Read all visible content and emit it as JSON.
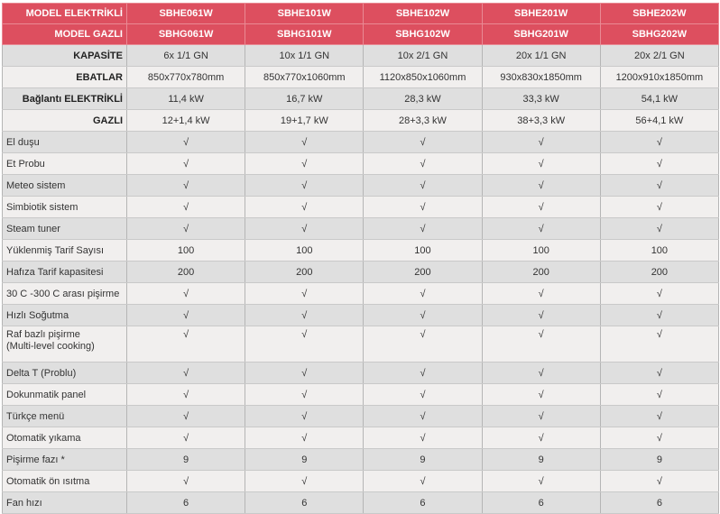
{
  "header_rows": [
    {
      "label": "MODEL ELEKTRİKLİ",
      "values": [
        "SBHE061W",
        "SBHE101W",
        "SBHE102W",
        "SBHE201W",
        "SBHE202W"
      ]
    },
    {
      "label": "MODEL GAZLI",
      "values": [
        "SBHG061W",
        "SBHG101W",
        "SBHG102W",
        "SBHG201W",
        "SBHG202W"
      ]
    }
  ],
  "spec_rows": [
    {
      "label": "KAPASİTE",
      "values": [
        "6x 1/1 GN",
        "10x 1/1 GN",
        "10x 2/1 GN",
        "20x 1/1 GN",
        "20x 2/1 GN"
      ]
    },
    {
      "label": "EBATLAR",
      "values": [
        "850x770x780mm",
        "850x770x1060mm",
        "1120x850x1060mm",
        "930x830x1850mm",
        "1200x910x1850mm"
      ]
    },
    {
      "label": "Bağlantı ELEKTRİKLİ",
      "values": [
        "11,4 kW",
        "16,7 kW",
        "28,3 kW",
        "33,3 kW",
        "54,1 kW"
      ]
    },
    {
      "label": "GAZLI",
      "values": [
        "12+1,4 kW",
        "19+1,7 kW",
        "28+3,3 kW",
        "38+3,3 kW",
        "56+4,1 kW"
      ]
    }
  ],
  "feature_rows": [
    {
      "label": "El duşu",
      "values": [
        "√",
        "√",
        "√",
        "√",
        "√"
      ]
    },
    {
      "label": "Et Probu",
      "values": [
        "√",
        "√",
        "√",
        "√",
        "√"
      ]
    },
    {
      "label": "Meteo sistem",
      "values": [
        "√",
        "√",
        "√",
        "√",
        "√"
      ]
    },
    {
      "label": "Simbiotik sistem",
      "values": [
        "√",
        "√",
        "√",
        "√",
        "√"
      ]
    },
    {
      "label": "Steam tuner",
      "values": [
        "√",
        "√",
        "√",
        "√",
        "√"
      ]
    },
    {
      "label": "Yüklenmiş Tarif Sayısı",
      "values": [
        "100",
        "100",
        "100",
        "100",
        "100"
      ]
    },
    {
      "label": "Hafıza Tarif kapasitesi",
      "values": [
        "200",
        "200",
        "200",
        "200",
        "200"
      ]
    },
    {
      "label": "30 C -300 C arası pişirme",
      "values": [
        "√",
        "√",
        "√",
        "√",
        "√"
      ]
    },
    {
      "label": "Hızlı Soğutma",
      "values": [
        "√",
        "√",
        "√",
        "√",
        "√"
      ]
    },
    {
      "label": "Raf bazlı pişirme",
      "label2": "(Multi-level cooking)",
      "values": [
        "√",
        "√",
        "√",
        "√",
        "√"
      ]
    },
    {
      "label": "Delta T (Problu)",
      "values": [
        "√",
        "√",
        "√",
        "√",
        "√"
      ]
    },
    {
      "label": "Dokunmatik panel",
      "values": [
        "√",
        "√",
        "√",
        "√",
        "√"
      ]
    },
    {
      "label": "Türkçe menü",
      "values": [
        "√",
        "√",
        "√",
        "√",
        "√"
      ]
    },
    {
      "label": "Otomatik yıkama",
      "values": [
        "√",
        "√",
        "√",
        "√",
        "√"
      ]
    },
    {
      "label": "Pişirme fazı *",
      "values": [
        "9",
        "9",
        "9",
        "9",
        "9"
      ]
    },
    {
      "label": "Otomatik ön ısıtma",
      "values": [
        "√",
        "√",
        "√",
        "√",
        "√"
      ]
    },
    {
      "label": "Fan hızı",
      "values": [
        "6",
        "6",
        "6",
        "6",
        "6"
      ]
    }
  ],
  "colors": {
    "header": "#dd4f5f",
    "row_dark": "#dfdfdf",
    "row_light": "#f1efee"
  }
}
